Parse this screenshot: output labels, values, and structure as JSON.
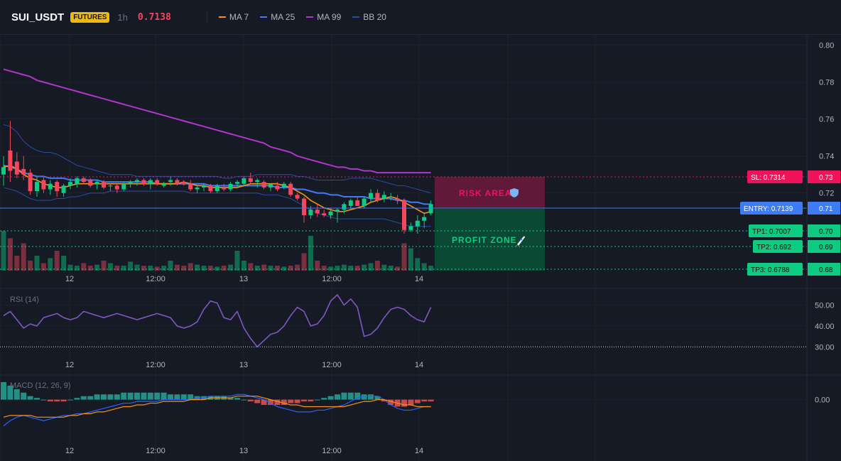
{
  "header": {
    "symbol": "SUI_USDT",
    "badge": "FUTURES",
    "timeframe": "1h",
    "price": "0.7138",
    "legend": [
      {
        "label": "MA 7",
        "color": "#f7931a"
      },
      {
        "label": "MA 25",
        "color": "#3d7cf5"
      },
      {
        "label": "MA 99",
        "color": "#b036c9"
      },
      {
        "label": "BB 20",
        "color": "#2a4ea0"
      }
    ]
  },
  "overlays": {
    "risk_label": "RISK AREA",
    "risk_icon": "shield-icon",
    "profit_label": "PROFIT ZONE",
    "profit_icon": "rocket-icon",
    "sl_label": "SL: 0.7314",
    "entry_label": "ENTRY: 0.7139",
    "tp1_label": "TP1: 0.7007",
    "tp2_label": "TP2: 0.692",
    "tp3_label": "TP3: 0.6788",
    "sl_tick": "0.73",
    "entry_tick": "0.71",
    "tp1_tick": "0.70",
    "tp2_tick": "0.69",
    "tp3_tick": "0.68"
  },
  "colors": {
    "bg": "#161a25",
    "up": "#0ecb81",
    "down": "#f6465d",
    "entry": "#3d7cf5",
    "risk": "#f0135c",
    "profit": "#0ecb81"
  },
  "chart_data": [
    {
      "type": "candlestick",
      "title": "SUI_USDT",
      "ylim": [
        0.678,
        0.806
      ],
      "yticks": [
        "0.80",
        "0.78",
        "0.76",
        "0.74",
        "0.72"
      ],
      "xticks": [
        "12",
        "12:00",
        "13",
        "12:00",
        "14"
      ],
      "candles": [
        {
          "o": 0.73,
          "h": 0.74,
          "l": 0.724,
          "c": 0.734
        },
        {
          "o": 0.743,
          "h": 0.759,
          "l": 0.726,
          "c": 0.732
        },
        {
          "o": 0.737,
          "h": 0.742,
          "l": 0.728,
          "c": 0.73
        },
        {
          "o": 0.733,
          "h": 0.74,
          "l": 0.727,
          "c": 0.73
        },
        {
          "o": 0.731,
          "h": 0.733,
          "l": 0.719,
          "c": 0.721
        },
        {
          "o": 0.721,
          "h": 0.729,
          "l": 0.718,
          "c": 0.726
        },
        {
          "o": 0.727,
          "h": 0.729,
          "l": 0.72,
          "c": 0.722
        },
        {
          "o": 0.722,
          "h": 0.727,
          "l": 0.719,
          "c": 0.725
        },
        {
          "o": 0.726,
          "h": 0.727,
          "l": 0.718,
          "c": 0.721
        },
        {
          "o": 0.72,
          "h": 0.725,
          "l": 0.718,
          "c": 0.724
        },
        {
          "o": 0.724,
          "h": 0.728,
          "l": 0.722,
          "c": 0.726
        },
        {
          "o": 0.725,
          "h": 0.729,
          "l": 0.723,
          "c": 0.728
        },
        {
          "o": 0.728,
          "h": 0.729,
          "l": 0.725,
          "c": 0.726
        },
        {
          "o": 0.727,
          "h": 0.728,
          "l": 0.723,
          "c": 0.724
        },
        {
          "o": 0.725,
          "h": 0.727,
          "l": 0.722,
          "c": 0.726
        },
        {
          "o": 0.726,
          "h": 0.727,
          "l": 0.722,
          "c": 0.723
        },
        {
          "o": 0.724,
          "h": 0.725,
          "l": 0.721,
          "c": 0.724
        },
        {
          "o": 0.724,
          "h": 0.725,
          "l": 0.72,
          "c": 0.722
        },
        {
          "o": 0.722,
          "h": 0.726,
          "l": 0.721,
          "c": 0.725
        },
        {
          "o": 0.725,
          "h": 0.727,
          "l": 0.723,
          "c": 0.726
        },
        {
          "o": 0.726,
          "h": 0.728,
          "l": 0.724,
          "c": 0.727
        },
        {
          "o": 0.727,
          "h": 0.728,
          "l": 0.724,
          "c": 0.725
        },
        {
          "o": 0.725,
          "h": 0.728,
          "l": 0.722,
          "c": 0.727
        },
        {
          "o": 0.727,
          "h": 0.728,
          "l": 0.724,
          "c": 0.725
        },
        {
          "o": 0.724,
          "h": 0.726,
          "l": 0.723,
          "c": 0.725
        },
        {
          "o": 0.726,
          "h": 0.729,
          "l": 0.724,
          "c": 0.727
        },
        {
          "o": 0.727,
          "h": 0.728,
          "l": 0.724,
          "c": 0.725
        },
        {
          "o": 0.726,
          "h": 0.727,
          "l": 0.724,
          "c": 0.725
        },
        {
          "o": 0.725,
          "h": 0.727,
          "l": 0.721,
          "c": 0.722
        },
        {
          "o": 0.722,
          "h": 0.724,
          "l": 0.72,
          "c": 0.723
        },
        {
          "o": 0.723,
          "h": 0.725,
          "l": 0.721,
          "c": 0.724
        },
        {
          "o": 0.724,
          "h": 0.725,
          "l": 0.72,
          "c": 0.721
        },
        {
          "o": 0.721,
          "h": 0.725,
          "l": 0.72,
          "c": 0.724
        },
        {
          "o": 0.723,
          "h": 0.725,
          "l": 0.721,
          "c": 0.722
        },
        {
          "o": 0.722,
          "h": 0.726,
          "l": 0.721,
          "c": 0.725
        },
        {
          "o": 0.725,
          "h": 0.727,
          "l": 0.723,
          "c": 0.726
        },
        {
          "o": 0.725,
          "h": 0.729,
          "l": 0.724,
          "c": 0.728
        },
        {
          "o": 0.728,
          "h": 0.731,
          "l": 0.725,
          "c": 0.726
        },
        {
          "o": 0.726,
          "h": 0.728,
          "l": 0.723,
          "c": 0.727
        },
        {
          "o": 0.726,
          "h": 0.727,
          "l": 0.722,
          "c": 0.723
        },
        {
          "o": 0.723,
          "h": 0.725,
          "l": 0.721,
          "c": 0.725
        },
        {
          "o": 0.724,
          "h": 0.726,
          "l": 0.721,
          "c": 0.722
        },
        {
          "o": 0.723,
          "h": 0.726,
          "l": 0.722,
          "c": 0.725
        },
        {
          "o": 0.725,
          "h": 0.726,
          "l": 0.718,
          "c": 0.719
        },
        {
          "o": 0.719,
          "h": 0.72,
          "l": 0.716,
          "c": 0.717
        },
        {
          "o": 0.717,
          "h": 0.718,
          "l": 0.704,
          "c": 0.708
        },
        {
          "o": 0.708,
          "h": 0.713,
          "l": 0.706,
          "c": 0.711
        },
        {
          "o": 0.711,
          "h": 0.714,
          "l": 0.707,
          "c": 0.709
        },
        {
          "o": 0.709,
          "h": 0.711,
          "l": 0.707,
          "c": 0.708
        },
        {
          "o": 0.708,
          "h": 0.712,
          "l": 0.706,
          "c": 0.71
        },
        {
          "o": 0.71,
          "h": 0.712,
          "l": 0.704,
          "c": 0.711
        },
        {
          "o": 0.711,
          "h": 0.715,
          "l": 0.709,
          "c": 0.714
        },
        {
          "o": 0.713,
          "h": 0.717,
          "l": 0.711,
          "c": 0.716
        },
        {
          "o": 0.716,
          "h": 0.718,
          "l": 0.713,
          "c": 0.713
        },
        {
          "o": 0.713,
          "h": 0.718,
          "l": 0.712,
          "c": 0.717
        },
        {
          "o": 0.717,
          "h": 0.722,
          "l": 0.715,
          "c": 0.72
        },
        {
          "o": 0.72,
          "h": 0.722,
          "l": 0.715,
          "c": 0.716
        },
        {
          "o": 0.717,
          "h": 0.721,
          "l": 0.715,
          "c": 0.719
        },
        {
          "o": 0.718,
          "h": 0.72,
          "l": 0.716,
          "c": 0.718
        },
        {
          "o": 0.717,
          "h": 0.719,
          "l": 0.714,
          "c": 0.716
        },
        {
          "o": 0.716,
          "h": 0.717,
          "l": 0.698,
          "c": 0.7
        },
        {
          "o": 0.7,
          "h": 0.704,
          "l": 0.699,
          "c": 0.702
        },
        {
          "o": 0.702,
          "h": 0.708,
          "l": 0.698,
          "c": 0.705
        },
        {
          "o": 0.705,
          "h": 0.709,
          "l": 0.701,
          "c": 0.707
        },
        {
          "o": 0.709,
          "h": 0.716,
          "l": 0.708,
          "c": 0.714
        }
      ],
      "ma7": [
        0.734,
        0.735,
        0.733,
        0.73,
        0.728,
        0.727,
        0.725,
        0.724,
        0.723,
        0.723,
        0.724,
        0.725,
        0.725,
        0.725,
        0.725,
        0.725,
        0.725,
        0.725,
        0.725,
        0.725,
        0.725,
        0.725,
        0.725,
        0.725,
        0.725,
        0.725,
        0.725,
        0.726,
        0.725,
        0.724,
        0.724,
        0.723,
        0.723,
        0.723,
        0.723,
        0.723,
        0.724,
        0.725,
        0.725,
        0.725,
        0.725,
        0.725,
        0.724,
        0.723,
        0.721,
        0.719,
        0.716,
        0.714,
        0.712,
        0.711,
        0.71,
        0.71,
        0.711,
        0.712,
        0.713,
        0.715,
        0.716,
        0.717,
        0.718,
        0.717,
        0.715,
        0.713,
        0.711,
        0.709,
        0.71
      ],
      "ma25": [
        0.735,
        0.734,
        0.733,
        0.731,
        0.73,
        0.729,
        0.729,
        0.728,
        0.728,
        0.728,
        0.727,
        0.727,
        0.727,
        0.727,
        0.727,
        0.726,
        0.726,
        0.726,
        0.726,
        0.726,
        0.726,
        0.726,
        0.726,
        0.725,
        0.725,
        0.725,
        0.725,
        0.725,
        0.725,
        0.725,
        0.725,
        0.724,
        0.724,
        0.724,
        0.724,
        0.724,
        0.724,
        0.724,
        0.724,
        0.724,
        0.724,
        0.723,
        0.723,
        0.723,
        0.722,
        0.722,
        0.721,
        0.72,
        0.72,
        0.719,
        0.719,
        0.718,
        0.718,
        0.718,
        0.718,
        0.717,
        0.717,
        0.717,
        0.717,
        0.716,
        0.716,
        0.715,
        0.715,
        0.714,
        0.714
      ],
      "ma99": [
        0.787,
        0.786,
        0.785,
        0.784,
        0.783,
        0.781,
        0.78,
        0.779,
        0.778,
        0.777,
        0.776,
        0.775,
        0.774,
        0.773,
        0.772,
        0.771,
        0.77,
        0.769,
        0.768,
        0.767,
        0.766,
        0.765,
        0.764,
        0.763,
        0.762,
        0.761,
        0.76,
        0.759,
        0.758,
        0.757,
        0.756,
        0.755,
        0.754,
        0.753,
        0.752,
        0.751,
        0.75,
        0.749,
        0.748,
        0.747,
        0.745,
        0.744,
        0.743,
        0.742,
        0.74,
        0.739,
        0.738,
        0.737,
        0.736,
        0.735,
        0.734,
        0.734,
        0.733,
        0.733,
        0.732,
        0.732,
        0.731,
        0.731,
        0.731,
        0.731,
        0.731,
        0.731,
        0.731,
        0.731,
        0.731
      ],
      "bb_upper": [
        0.757,
        0.756,
        0.753,
        0.748,
        0.745,
        0.743,
        0.742,
        0.742,
        0.741,
        0.739,
        0.737,
        0.735,
        0.734,
        0.733,
        0.732,
        0.731,
        0.73,
        0.73,
        0.73,
        0.73,
        0.729,
        0.729,
        0.729,
        0.729,
        0.729,
        0.729,
        0.729,
        0.729,
        0.729,
        0.729,
        0.729,
        0.729,
        0.729,
        0.728,
        0.728,
        0.729,
        0.729,
        0.729,
        0.73,
        0.73,
        0.73,
        0.73,
        0.73,
        0.73,
        0.729,
        0.729,
        0.728,
        0.727,
        0.727,
        0.727,
        0.727,
        0.727,
        0.728,
        0.728,
        0.728,
        0.728,
        0.727,
        0.726,
        0.725,
        0.724,
        0.724,
        0.723,
        0.722,
        0.721,
        0.72
      ],
      "bb_lower": [
        0.723,
        0.722,
        0.721,
        0.719,
        0.717,
        0.716,
        0.716,
        0.716,
        0.717,
        0.717,
        0.718,
        0.718,
        0.719,
        0.72,
        0.72,
        0.72,
        0.721,
        0.721,
        0.721,
        0.721,
        0.721,
        0.721,
        0.721,
        0.721,
        0.721,
        0.721,
        0.721,
        0.721,
        0.72,
        0.72,
        0.72,
        0.72,
        0.72,
        0.72,
        0.72,
        0.72,
        0.72,
        0.72,
        0.72,
        0.719,
        0.719,
        0.719,
        0.718,
        0.717,
        0.715,
        0.713,
        0.711,
        0.709,
        0.708,
        0.707,
        0.706,
        0.706,
        0.706,
        0.706,
        0.706,
        0.706,
        0.706,
        0.706,
        0.705,
        0.704,
        0.703,
        0.702,
        0.702,
        0.702,
        0.702
      ],
      "volume": [
        0.8,
        0.65,
        0.3,
        0.55,
        0.2,
        0.3,
        0.15,
        0.25,
        0.4,
        0.3,
        0.12,
        0.1,
        0.15,
        0.1,
        0.12,
        0.2,
        0.15,
        0.1,
        0.1,
        0.18,
        0.12,
        0.1,
        0.1,
        0.08,
        0.1,
        0.2,
        0.12,
        0.1,
        0.15,
        0.12,
        0.1,
        0.1,
        0.08,
        0.1,
        0.12,
        0.4,
        0.2,
        0.15,
        0.1,
        0.12,
        0.1,
        0.1,
        0.08,
        0.1,
        0.12,
        0.35,
        0.7,
        0.2,
        0.1,
        0.08,
        0.1,
        0.12,
        0.1,
        0.1,
        0.12,
        0.15,
        0.2,
        0.12,
        0.1,
        0.08,
        0.55,
        0.45,
        0.25,
        0.15,
        0.1
      ]
    },
    {
      "type": "line",
      "title": "RSI (14)",
      "ylim": [
        26,
        56
      ],
      "yticks": [
        "50.00",
        "40.00",
        "30.00"
      ],
      "xticks": [
        "12",
        "12:00",
        "13",
        "12:00",
        "14"
      ],
      "values": [
        45,
        47,
        43,
        39,
        41,
        40,
        44,
        45,
        46,
        44,
        43,
        44,
        47,
        46,
        45,
        44,
        45,
        46,
        45,
        44,
        43,
        44,
        45,
        46,
        45,
        44,
        40,
        39,
        40,
        42,
        48,
        52,
        51,
        44,
        43,
        47,
        39,
        34,
        30,
        33,
        36,
        37,
        40,
        45,
        49,
        47,
        40,
        41,
        45,
        52,
        55,
        50,
        53,
        49,
        35,
        36,
        39,
        44,
        48,
        49,
        48,
        45,
        43,
        42,
        49
      ]
    },
    {
      "type": "bar",
      "title": "MACD (12, 26, 9)",
      "ylim": [
        -0.02,
        0.012
      ],
      "yticks": [
        "0.00"
      ],
      "xticks": [
        "12",
        "12:00",
        "13",
        "12:00",
        "14"
      ],
      "histogram": [
        0.01,
        0.008,
        0.006,
        0.004,
        0.002,
        0.001,
        0.0,
        -0.001,
        -0.001,
        -0.001,
        0.0,
        0.001,
        0.002,
        0.002,
        0.003,
        0.003,
        0.003,
        0.003,
        0.004,
        0.004,
        0.004,
        0.004,
        0.004,
        0.004,
        0.004,
        0.003,
        0.003,
        0.003,
        0.003,
        0.002,
        0.002,
        0.002,
        0.002,
        0.002,
        0.001,
        0.001,
        0.0,
        -0.001,
        -0.002,
        -0.003,
        -0.003,
        -0.003,
        -0.003,
        -0.002,
        -0.002,
        -0.001,
        -0.001,
        0.0,
        0.001,
        0.002,
        0.003,
        0.004,
        0.004,
        0.004,
        0.003,
        0.003,
        0.002,
        -0.001,
        -0.003,
        -0.004,
        -0.004,
        -0.003,
        -0.002,
        -0.001,
        -0.001
      ],
      "macd": [
        -0.015,
        -0.012,
        -0.01,
        -0.009,
        -0.01,
        -0.011,
        -0.012,
        -0.011,
        -0.01,
        -0.009,
        -0.009,
        -0.008,
        -0.008,
        -0.007,
        -0.006,
        -0.005,
        -0.004,
        -0.003,
        -0.002,
        -0.002,
        -0.001,
        -0.001,
        -0.001,
        -0.001,
        0.0,
        0.0,
        0.0,
        0.0,
        0.0,
        0.001,
        0.001,
        0.002,
        0.002,
        0.002,
        0.002,
        0.003,
        0.003,
        0.002,
        0.001,
        0.0,
        -0.002,
        -0.004,
        -0.005,
        -0.006,
        -0.007,
        -0.007,
        -0.007,
        -0.006,
        -0.006,
        -0.005,
        -0.004,
        -0.003,
        -0.001,
        0.001,
        0.002,
        0.002,
        0.002,
        0.0,
        -0.003,
        -0.005,
        -0.006,
        -0.006,
        -0.005,
        -0.004,
        -0.004
      ],
      "signal": [
        -0.01,
        -0.009,
        -0.009,
        -0.009,
        -0.009,
        -0.01,
        -0.01,
        -0.01,
        -0.01,
        -0.01,
        -0.009,
        -0.009,
        -0.008,
        -0.008,
        -0.007,
        -0.007,
        -0.006,
        -0.005,
        -0.004,
        -0.004,
        -0.003,
        -0.003,
        -0.002,
        -0.002,
        -0.001,
        -0.001,
        -0.001,
        -0.001,
        0.0,
        0.0,
        0.0,
        0.001,
        0.001,
        0.001,
        0.001,
        0.002,
        0.002,
        0.002,
        0.002,
        0.001,
        0.0,
        -0.001,
        -0.002,
        -0.003,
        -0.003,
        -0.004,
        -0.004,
        -0.004,
        -0.004,
        -0.004,
        -0.004,
        -0.004,
        -0.003,
        -0.002,
        -0.001,
        -0.001,
        0.0,
        0.0,
        -0.001,
        -0.002,
        -0.003,
        -0.003,
        -0.004,
        -0.004,
        -0.004
      ]
    }
  ]
}
